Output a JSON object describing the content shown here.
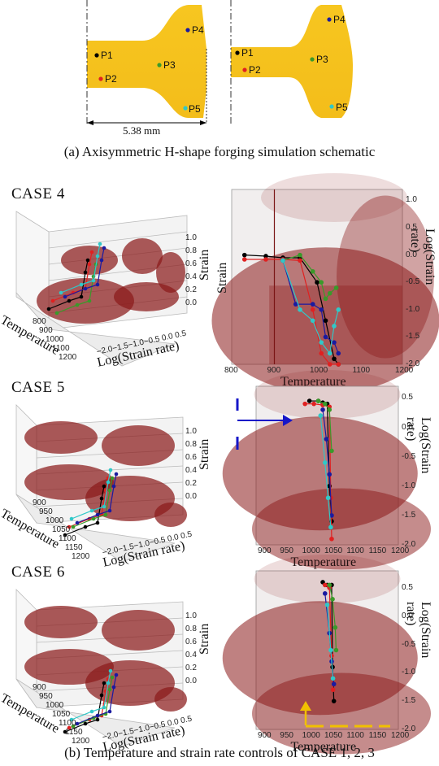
{
  "schematic": {
    "points": [
      "P1",
      "P2",
      "P3",
      "P4",
      "P5"
    ],
    "dimension": "5.38 mm",
    "caption": "(a) Axisymmetric H-shape forging simulation schematic",
    "colors": {
      "body": "#f5c31c",
      "P1": "#000000",
      "P2": "#e02020",
      "P3": "#3a9a2a",
      "P4": "#1a1aa0",
      "P5": "#30c8c8"
    }
  },
  "cases": [
    {
      "title": "CASE 4",
      "x_ticks_3d": [
        "800",
        "900",
        "1000",
        "1100",
        "1200"
      ],
      "x_ticks_2d": [
        "800",
        "900",
        "1000",
        "1100",
        "1200"
      ],
      "y_ticks_2d": [
        "1.0",
        "0.5",
        "0.0",
        "-0.5",
        "-1.0",
        "-1.5",
        "-2.0"
      ]
    },
    {
      "title": "CASE 5",
      "x_ticks_3d": [
        "900",
        "950",
        "1000",
        "1050",
        "1100",
        "1150",
        "1200"
      ],
      "x_ticks_2d": [
        "900",
        "950",
        "1000",
        "1050",
        "1100",
        "1150",
        "1200"
      ],
      "y_ticks_2d": [
        "0.5",
        "0.0",
        "-0.5",
        "-1.0",
        "-1.5",
        "-2.0"
      ]
    },
    {
      "title": "CASE 6",
      "x_ticks_3d": [
        "900",
        "950",
        "1000",
        "1050",
        "1100",
        "1150",
        "1200"
      ],
      "x_ticks_2d": [
        "900",
        "950",
        "1000",
        "1050",
        "1100",
        "1150",
        "1200"
      ],
      "y_ticks_2d": [
        "0.5",
        "0.0",
        "-0.5",
        "-1.0",
        "-1.5",
        "-2.0"
      ]
    }
  ],
  "axes": {
    "temperature": "Temperature",
    "strain": "Strain",
    "log_strain_rate": "Log(Strain rate)",
    "strain_ticks": [
      "1.0",
      "0.8",
      "0.6",
      "0.4",
      "0.2",
      "0.0"
    ],
    "lsr_ticks_3d": "−2.0−1.5−1.0−0.5 0.0 0.5"
  },
  "caption_b": "(b) Temperature and strain rate controls of CASE 1, 2, 3",
  "chart_data": [
    {
      "type": "line",
      "title": "CASE 4",
      "xlabel": "Temperature",
      "ylabel": "Log(Strain rate)",
      "xlim": [
        800,
        1200
      ],
      "ylim": [
        -2.0,
        1.2
      ],
      "series": [
        {
          "color": "#000000",
          "x": [
            830,
            880,
            920,
            960,
            1000,
            1020,
            1040,
            1050
          ],
          "y": [
            0.0,
            -0.02,
            -0.05,
            -0.05,
            -0.5,
            -1.2,
            -1.9,
            -2.0
          ]
        },
        {
          "color": "#e02020",
          "x": [
            830,
            880,
            920,
            960,
            990,
            1010,
            1030,
            1050
          ],
          "y": [
            -0.08,
            -0.08,
            -0.08,
            -0.1,
            -1.0,
            -1.8,
            -2.0,
            -2.0
          ]
        },
        {
          "color": "#3a9a2a",
          "x": [
            920,
            960,
            990,
            1010,
            1020,
            1030,
            1045
          ],
          "y": [
            -0.1,
            0.0,
            -0.3,
            -0.5,
            -0.8,
            -0.7,
            -0.6
          ]
        },
        {
          "color": "#1a1aa0",
          "x": [
            920,
            950,
            990,
            1010,
            1020,
            1040,
            1050
          ],
          "y": [
            -0.1,
            -0.9,
            -0.9,
            -1.0,
            -1.5,
            -1.6,
            -1.8
          ]
        },
        {
          "color": "#30c8c8",
          "x": [
            920,
            960,
            990,
            1010,
            1030,
            1040,
            1050
          ],
          "y": [
            -0.1,
            -1.0,
            -1.2,
            -1.6,
            -1.8,
            -1.3,
            -1.0
          ]
        }
      ]
    },
    {
      "type": "line",
      "title": "CASE 5",
      "xlabel": "Temperature",
      "ylabel": "Log(Strain rate)",
      "xlim": [
        880,
        1200
      ],
      "ylim": [
        -2.0,
        0.7
      ],
      "series": [
        {
          "color": "#000000",
          "x": [
            1000,
            1020,
            1030,
            1040,
            1045,
            1050
          ],
          "y": [
            0.45,
            0.45,
            0.42,
            0.4,
            -1.0,
            -1.6
          ]
        },
        {
          "color": "#e02020",
          "x": [
            990,
            1010,
            1030,
            1045,
            1048,
            1050
          ],
          "y": [
            0.4,
            0.4,
            0.38,
            0.35,
            -1.2,
            -1.9
          ]
        },
        {
          "color": "#3a9a2a",
          "x": [
            1020,
            1035,
            1045,
            1050
          ],
          "y": [
            0.45,
            0.4,
            0.3,
            -0.4
          ]
        },
        {
          "color": "#1a1aa0",
          "x": [
            1030,
            1038,
            1045,
            1050
          ],
          "y": [
            0.3,
            -0.2,
            -0.8,
            -1.5
          ]
        },
        {
          "color": "#30c8c8",
          "x": [
            1025,
            1035,
            1042,
            1048
          ],
          "y": [
            0.2,
            -0.6,
            -1.2,
            -1.7
          ]
        }
      ]
    },
    {
      "type": "line",
      "title": "CASE 6",
      "xlabel": "Temperature",
      "ylabel": "Log(Strain rate)",
      "xlim": [
        880,
        1200
      ],
      "ylim": [
        -2.0,
        0.8
      ],
      "series": [
        {
          "color": "#000000",
          "x": [
            1030,
            1040,
            1050,
            1052,
            1055
          ],
          "y": [
            0.6,
            0.55,
            0.55,
            -0.9,
            -1.5
          ]
        },
        {
          "color": "#e02020",
          "x": [
            1035,
            1045,
            1050,
            1053
          ],
          "y": [
            0.55,
            0.5,
            -0.7,
            -1.3
          ]
        },
        {
          "color": "#3a9a2a",
          "x": [
            1045,
            1052,
            1058,
            1060
          ],
          "y": [
            0.55,
            0.3,
            -0.2,
            -0.6
          ]
        },
        {
          "color": "#1a1aa0",
          "x": [
            1035,
            1045,
            1050,
            1055
          ],
          "y": [
            0.4,
            -0.3,
            -0.8,
            -1.2
          ]
        },
        {
          "color": "#30c8c8",
          "x": [
            1040,
            1048,
            1053
          ],
          "y": [
            0.2,
            -0.6,
            -1.1
          ]
        }
      ]
    }
  ]
}
